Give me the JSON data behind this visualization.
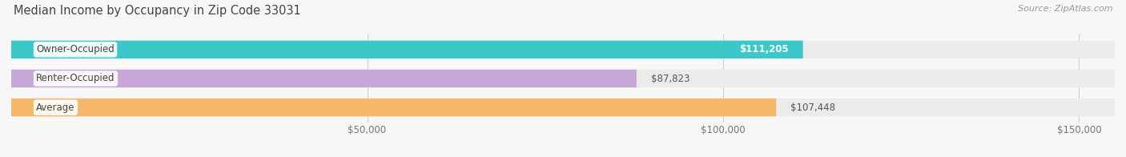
{
  "title": "Median Income by Occupancy in Zip Code 33031",
  "source": "Source: ZipAtlas.com",
  "categories": [
    "Owner-Occupied",
    "Renter-Occupied",
    "Average"
  ],
  "values": [
    111205,
    87823,
    107448
  ],
  "bar_colors": [
    "#3cc8c8",
    "#c8a8d8",
    "#f5b86a"
  ],
  "bar_background_colors": [
    "#ebebeb",
    "#ebebeb",
    "#ebebeb"
  ],
  "label_texts": [
    "$111,205",
    "$87,823",
    "$107,448"
  ],
  "label_inside": [
    true,
    false,
    false
  ],
  "x_ticks": [
    0,
    50000,
    100000,
    150000
  ],
  "x_tick_labels": [
    "",
    "$50,000",
    "$100,000",
    "$150,000"
  ],
  "xlim_max": 155000,
  "title_fontsize": 10.5,
  "source_fontsize": 8,
  "label_fontsize": 8.5,
  "bar_label_fontsize": 8.5,
  "value_label_fontsize": 8.5,
  "background_color": "#f7f7f7"
}
